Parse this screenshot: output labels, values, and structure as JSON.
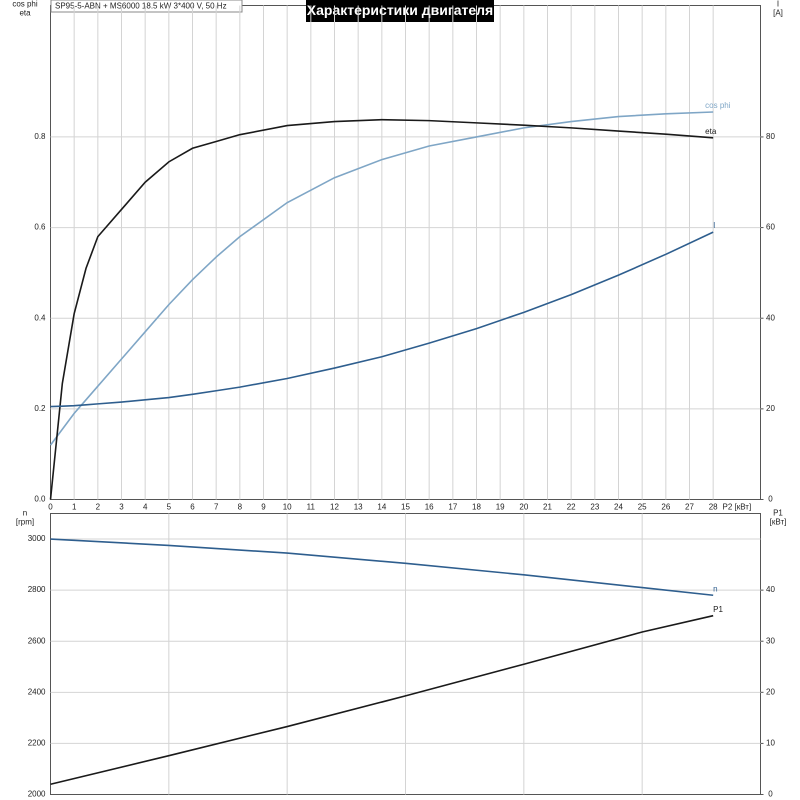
{
  "chart_data": [
    {
      "type": "line",
      "title": "Характеристики двигателя",
      "subtitle": "SP95-5-ABN + MS6000   18.5 kW   3*400 V, 50 Hz",
      "ylabel": [
        "cos phi",
        "eta"
      ],
      "y2label": [
        "I",
        "[A]"
      ],
      "xlabel": "P2 [кВт]",
      "x": [
        0,
        0.5,
        1,
        1.5,
        2,
        3,
        4,
        5,
        6,
        7,
        8,
        10,
        12,
        14,
        16,
        18,
        20,
        22,
        24,
        26,
        28
      ],
      "series": [
        {
          "name": "cos phi",
          "color": "#7fa6c6",
          "values": [
            0.12,
            0.155,
            0.19,
            0.22,
            0.25,
            0.31,
            0.37,
            0.43,
            0.485,
            0.535,
            0.58,
            0.655,
            0.71,
            0.75,
            0.78,
            0.8,
            0.82,
            0.834,
            0.845,
            0.851,
            0.855
          ]
        },
        {
          "name": "eta",
          "color": "#1a1a1a",
          "values": [
            0,
            0.256,
            0.41,
            0.51,
            0.58,
            0.64,
            0.7,
            0.745,
            0.775,
            0.79,
            0.805,
            0.825,
            0.834,
            0.838,
            0.836,
            0.831,
            0.826,
            0.82,
            0.813,
            0.806,
            0.798
          ]
        },
        {
          "name": "I",
          "color": "#2e5e8e",
          "axis": "y2",
          "values": [
            20.5,
            20.6,
            20.7,
            20.9,
            21.1,
            21.5,
            22.0,
            22.5,
            23.2,
            24.0,
            24.8,
            26.7,
            29.0,
            31.5,
            34.5,
            37.7,
            41.3,
            45.2,
            49.5,
            54.1,
            59.0
          ]
        }
      ],
      "xlim": [
        0,
        30
      ],
      "xticks": [
        0,
        1,
        2,
        3,
        4,
        5,
        6,
        7,
        8,
        9,
        10,
        11,
        12,
        13,
        14,
        15,
        16,
        17,
        18,
        19,
        20,
        21,
        22,
        23,
        24,
        25,
        26,
        27,
        28
      ],
      "ylim": [
        0,
        1.09
      ],
      "yticks": [
        {
          "value": 0,
          "label": "0.0"
        },
        0.2,
        0.4,
        0.6,
        0.8
      ],
      "y2lim": [
        0,
        109
      ],
      "y2ticks": [
        0,
        20,
        40,
        60,
        80
      ],
      "grid": true
    },
    {
      "type": "line",
      "ylabel": [
        "n",
        "[rpm]"
      ],
      "y2label": [
        "P1",
        "[кВт]"
      ],
      "x": [
        0,
        5,
        10,
        15,
        20,
        25,
        28
      ],
      "series": [
        {
          "name": "n",
          "color": "#2e5e8e",
          "values": [
            3000,
            2975,
            2945,
            2905,
            2860,
            2810,
            2780
          ]
        },
        {
          "name": "P1",
          "color": "#1a1a1a",
          "axis": "y2",
          "values": [
            2.0,
            7.6,
            13.3,
            19.3,
            25.5,
            31.8,
            35.0
          ]
        }
      ],
      "xlim": [
        0,
        30
      ],
      "xticks": [
        0,
        5,
        10,
        15,
        20,
        25
      ],
      "ylim": [
        2000,
        3100
      ],
      "yticks": [
        2000,
        2200,
        2400,
        2600,
        2800,
        3000
      ],
      "y2lim": [
        0,
        55
      ],
      "y2ticks": [
        0,
        10,
        20,
        30,
        40
      ],
      "grid": true
    }
  ]
}
